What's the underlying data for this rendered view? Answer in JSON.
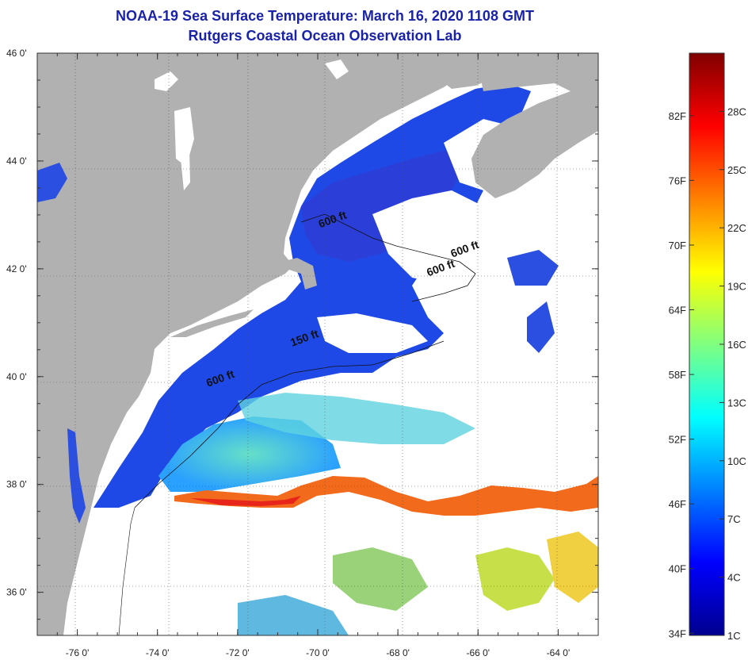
{
  "header": {
    "title": "NOAA-19 Sea Surface Temperature:  March 16, 2020 1108 GMT",
    "subtitle": "Rutgers Coastal Ocean Observation Lab"
  },
  "map": {
    "region": "Northwest Atlantic / Gulf of Maine to Mid-Atlantic Bight",
    "lat_range": [
      35.2,
      46.0
    ],
    "lon_range": [
      -77.0,
      -63.0
    ],
    "lat_labels": [
      {
        "value": 46,
        "text": "46 0'"
      },
      {
        "value": 44,
        "text": "44 0'"
      },
      {
        "value": 42,
        "text": "42 0'"
      },
      {
        "value": 40,
        "text": "40 0'"
      },
      {
        "value": 38,
        "text": "38 0'"
      },
      {
        "value": 36,
        "text": "36 0'"
      }
    ],
    "lon_labels": [
      {
        "value": -76,
        "text": "-76 0'"
      },
      {
        "value": -74,
        "text": "-74 0'"
      },
      {
        "value": -72,
        "text": "-72 0'"
      },
      {
        "value": -70,
        "text": "-70 0'"
      },
      {
        "value": -68,
        "text": "-68 0'"
      },
      {
        "value": -66,
        "text": "-66 0'"
      },
      {
        "value": -64,
        "text": "-64 0'"
      }
    ],
    "contour_labels": [
      {
        "text": "600 ft",
        "lon": -69.6,
        "lat": 42.85
      },
      {
        "text": "600 ft",
        "lon": -66.3,
        "lat": 42.3
      },
      {
        "text": "600 ft",
        "lon": -66.9,
        "lat": 41.95
      },
      {
        "text": "150 ft",
        "lon": -70.3,
        "lat": 40.65
      },
      {
        "text": "600 ft",
        "lon": -72.4,
        "lat": 39.9
      }
    ],
    "colors": {
      "land": "#b1b1b1",
      "cloud": "#ffffff",
      "grid": "#555555"
    }
  },
  "colorbar": {
    "range_c": [
      1,
      31
    ],
    "fahrenheit_labels": [
      {
        "value_f": 82,
        "text": "82F"
      },
      {
        "value_f": 76,
        "text": "76F"
      },
      {
        "value_f": 70,
        "text": "70F"
      },
      {
        "value_f": 64,
        "text": "64F"
      },
      {
        "value_f": 58,
        "text": "58F"
      },
      {
        "value_f": 52,
        "text": "52F"
      },
      {
        "value_f": 46,
        "text": "46F"
      },
      {
        "value_f": 40,
        "text": "40F"
      },
      {
        "value_f": 34,
        "text": "34F"
      }
    ],
    "celsius_labels": [
      {
        "value_c": 28,
        "text": "28C"
      },
      {
        "value_c": 25,
        "text": "25C"
      },
      {
        "value_c": 22,
        "text": "22C"
      },
      {
        "value_c": 19,
        "text": "19C"
      },
      {
        "value_c": 16,
        "text": "16C"
      },
      {
        "value_c": 13,
        "text": "13C"
      },
      {
        "value_c": 10,
        "text": "10C"
      },
      {
        "value_c": 7,
        "text": "7C"
      },
      {
        "value_c": 4,
        "text": "4C"
      },
      {
        "value_c": 1,
        "text": "1C"
      }
    ],
    "gradient": [
      "#00008f",
      "#0000ff",
      "#0080ff",
      "#00ffff",
      "#80ff80",
      "#ffff00",
      "#ff8000",
      "#ff0000",
      "#800000"
    ]
  }
}
